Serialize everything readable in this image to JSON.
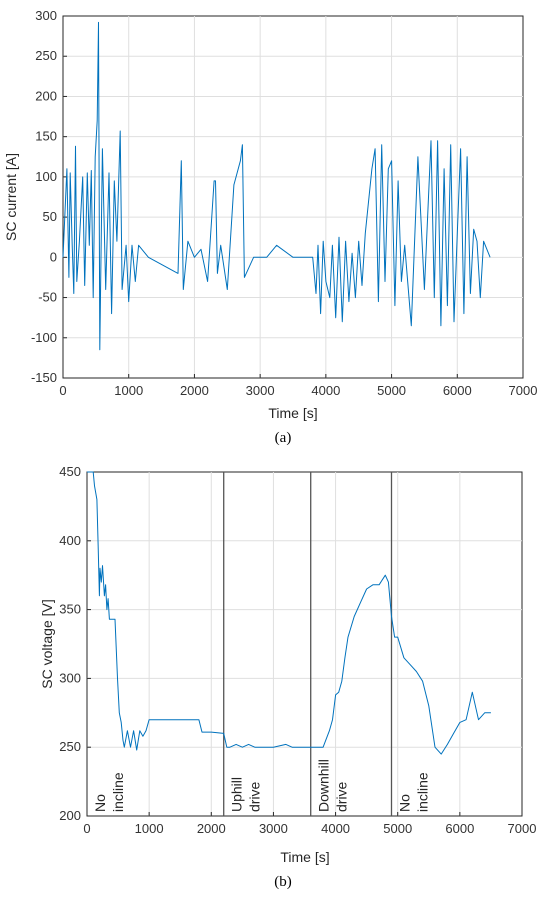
{
  "chart_data": [
    {
      "type": "line",
      "caption": "(a)",
      "xlabel": "Time [s]",
      "ylabel": "SC current [A]",
      "xlim": [
        0,
        7000
      ],
      "ylim": [
        -150,
        300
      ],
      "xticks": [
        0,
        1000,
        2000,
        3000,
        4000,
        5000,
        6000,
        7000
      ],
      "yticks": [
        -150,
        -100,
        -50,
        0,
        50,
        100,
        150,
        200,
        250,
        300
      ],
      "grid": true,
      "color": "#0072BD",
      "series": [
        {
          "x": [
            0,
            60,
            90,
            110,
            140,
            165,
            190,
            210,
            250,
            300,
            330,
            370,
            400,
            430,
            460,
            490,
            520,
            540,
            560,
            600,
            650,
            700,
            740,
            780,
            820,
            870,
            900,
            960,
            1000,
            1050,
            1100,
            1150,
            1300,
            1750,
            1800,
            1830,
            1900,
            2000,
            2100,
            2200,
            2300,
            2320,
            2350,
            2400,
            2500,
            2600,
            2700,
            2730,
            2760,
            2900,
            3100,
            3250,
            3500,
            3800,
            3850,
            3880,
            3920,
            3960,
            4000,
            4060,
            4100,
            4150,
            4200,
            4250,
            4300,
            4350,
            4400,
            4450,
            4500,
            4550,
            4600,
            4700,
            4750,
            4800,
            4850,
            4900,
            4950,
            5000,
            5050,
            5100,
            5150,
            5200,
            5300,
            5400,
            5500,
            5600,
            5650,
            5700,
            5750,
            5800,
            5850,
            5900,
            5950,
            6000,
            6050,
            6100,
            6150,
            6200,
            6250,
            6300,
            6350,
            6400,
            6500
          ],
          "y": [
            0,
            110,
            -25,
            105,
            15,
            -45,
            138,
            -30,
            20,
            100,
            -35,
            105,
            15,
            108,
            -50,
            125,
            170,
            292,
            -115,
            135,
            -40,
            105,
            -70,
            95,
            20,
            157,
            -40,
            15,
            -55,
            15,
            -30,
            15,
            0,
            -20,
            120,
            -40,
            20,
            0,
            10,
            -30,
            95,
            95,
            -20,
            15,
            -40,
            90,
            120,
            140,
            -25,
            0,
            0,
            15,
            0,
            0,
            -45,
            15,
            -70,
            20,
            -30,
            -50,
            15,
            -75,
            25,
            -80,
            20,
            -55,
            5,
            -50,
            20,
            -35,
            30,
            110,
            135,
            -55,
            140,
            -30,
            110,
            120,
            -60,
            95,
            -30,
            15,
            -85,
            125,
            -40,
            145,
            -50,
            145,
            -85,
            110,
            -60,
            140,
            -80,
            30,
            135,
            -70,
            125,
            -45,
            35,
            20,
            -50,
            20,
            0
          ]
        }
      ]
    },
    {
      "type": "line",
      "caption": "(b)",
      "xlabel": "Time [s]",
      "ylabel": "SC voltage [V]",
      "xlim": [
        0,
        7000
      ],
      "ylim": [
        200,
        450
      ],
      "xticks": [
        0,
        1000,
        2000,
        3000,
        4000,
        5000,
        6000,
        7000
      ],
      "yticks": [
        200,
        250,
        300,
        350,
        400,
        450
      ],
      "grid": true,
      "color": "#0072BD",
      "boundaries": [
        2200,
        3600,
        4900
      ],
      "regions": [
        {
          "label1": "No",
          "label2": "incline"
        },
        {
          "label1": "Uphill",
          "label2": "drive"
        },
        {
          "label1": "Downhill",
          "label2": "drive"
        },
        {
          "label1": "No",
          "label2": "incline"
        }
      ],
      "series": [
        {
          "x": [
            0,
            100,
            120,
            160,
            180,
            200,
            210,
            230,
            250,
            280,
            300,
            320,
            340,
            360,
            380,
            400,
            450,
            490,
            520,
            550,
            580,
            600,
            650,
            700,
            750,
            800,
            850,
            900,
            950,
            1000,
            1100,
            1200,
            1500,
            1800,
            1850,
            2000,
            2200,
            2250,
            2300,
            2400,
            2500,
            2600,
            2700,
            2800,
            3000,
            3200,
            3300,
            3400,
            3600,
            3800,
            3900,
            3950,
            4000,
            4050,
            4100,
            4150,
            4200,
            4300,
            4400,
            4500,
            4600,
            4700,
            4800,
            4850,
            4900,
            4950,
            5000,
            5100,
            5200,
            5300,
            5400,
            5500,
            5600,
            5700,
            5800,
            5900,
            6000,
            6100,
            6200,
            6300,
            6400,
            6500
          ],
          "y": [
            450,
            450,
            440,
            430,
            395,
            360,
            380,
            370,
            382,
            360,
            368,
            350,
            358,
            343,
            343,
            343,
            343,
            300,
            275,
            268,
            255,
            250,
            262,
            250,
            262,
            248,
            262,
            258,
            262,
            270,
            270,
            270,
            270,
            270,
            261,
            261,
            260,
            250,
            250,
            252,
            250,
            252,
            250,
            250,
            250,
            252,
            250,
            250,
            250,
            250,
            262,
            270,
            288,
            290,
            298,
            315,
            330,
            345,
            355,
            365,
            368,
            368,
            375,
            370,
            345,
            330,
            330,
            315,
            310,
            305,
            298,
            280,
            250,
            245,
            252,
            260,
            268,
            270,
            290,
            270,
            275,
            275
          ]
        }
      ]
    }
  ]
}
